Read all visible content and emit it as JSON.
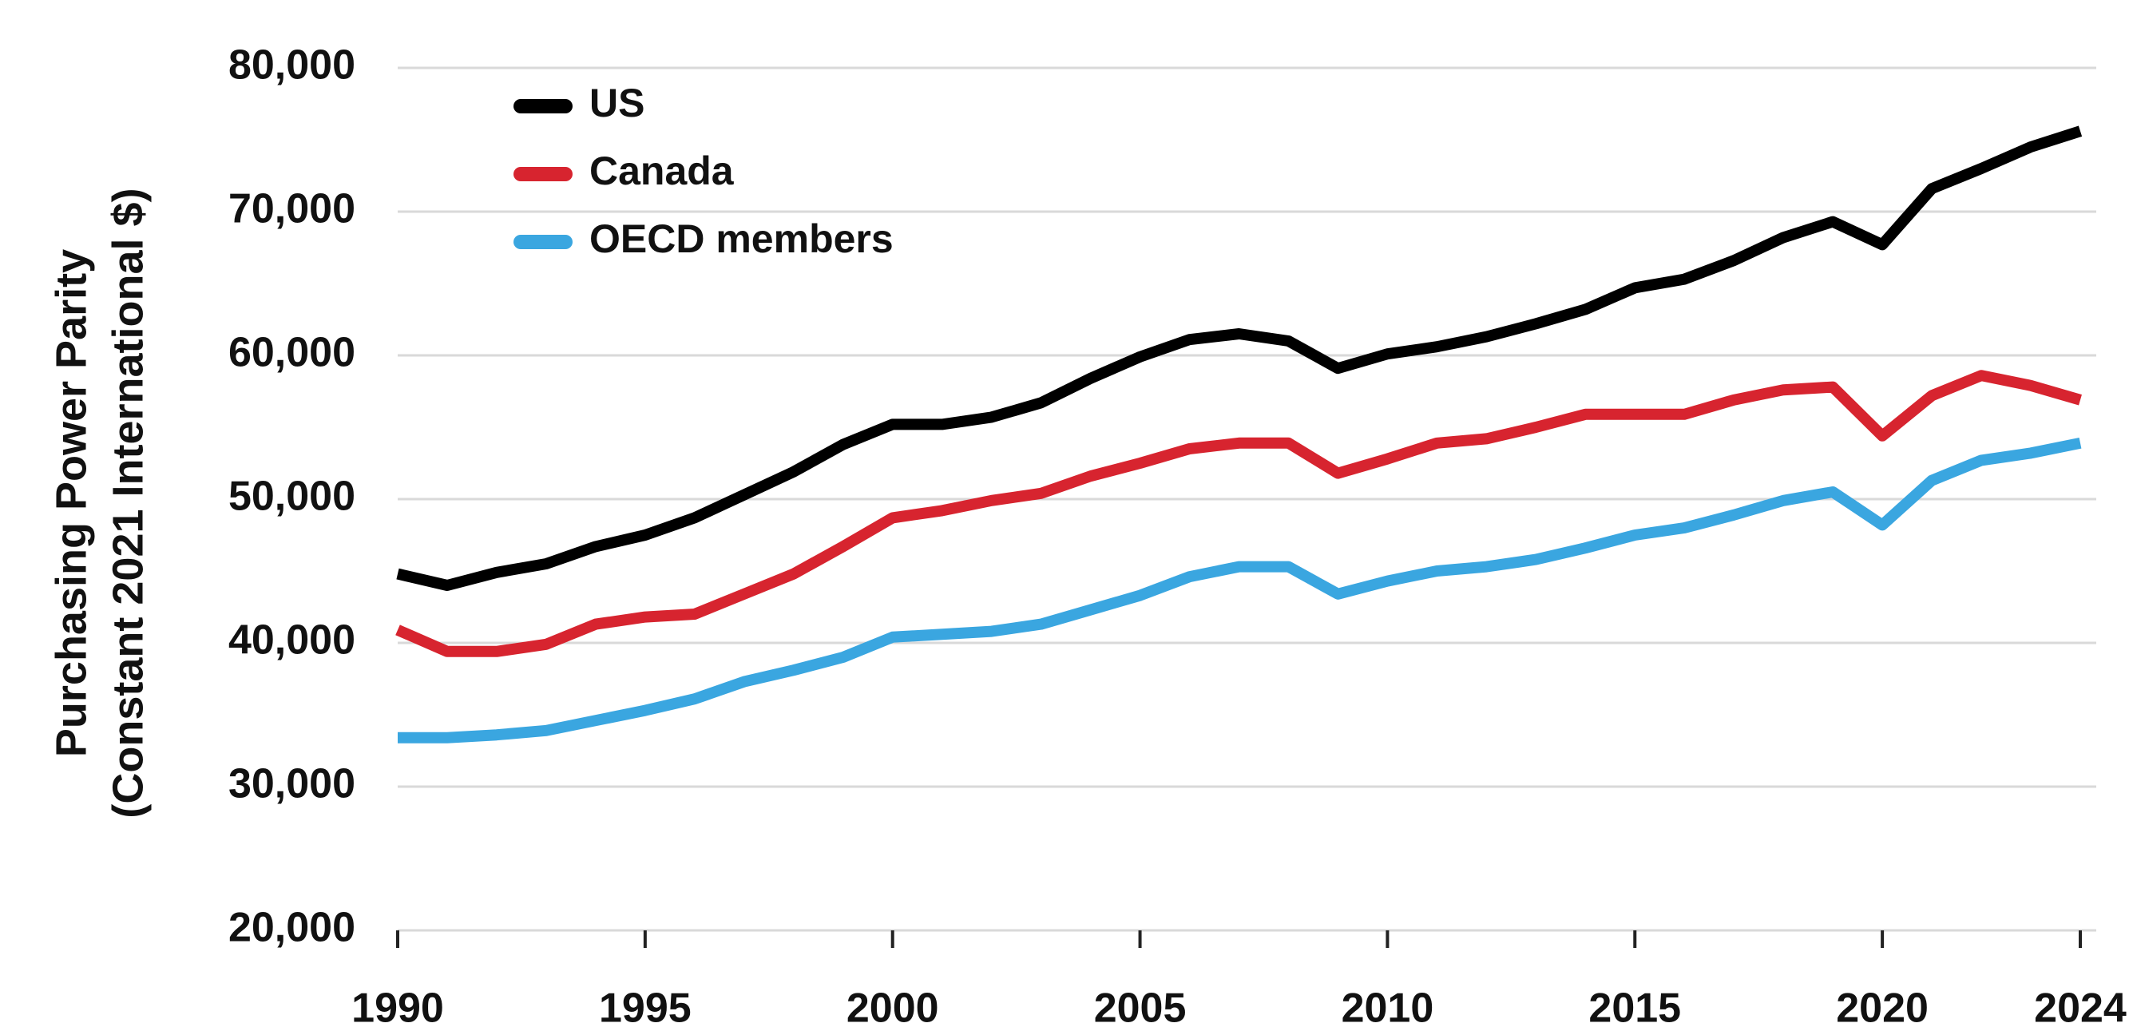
{
  "chart_data": {
    "type": "line",
    "ylabel": [
      "Purchasing Power Parity",
      "(Constant 2021 International $)"
    ],
    "x": [
      1990,
      1991,
      1992,
      1993,
      1994,
      1995,
      1996,
      1997,
      1998,
      1999,
      2000,
      2001,
      2002,
      2003,
      2004,
      2005,
      2006,
      2007,
      2008,
      2009,
      2010,
      2011,
      2012,
      2013,
      2014,
      2015,
      2016,
      2017,
      2018,
      2019,
      2020,
      2021,
      2022,
      2023,
      2024
    ],
    "series": [
      {
        "name": "US",
        "color": "#000000",
        "values": [
          44800,
          44000,
          44900,
          45500,
          46700,
          47500,
          48700,
          50300,
          51900,
          53800,
          55200,
          55200,
          55700,
          56700,
          58400,
          59900,
          61100,
          61500,
          61000,
          59100,
          60100,
          60600,
          61300,
          62200,
          63200,
          64700,
          65300,
          66600,
          68200,
          69300,
          67700,
          71600,
          73000,
          74500,
          75600
        ]
      },
      {
        "name": "Canada",
        "color": "#d7242f",
        "values": [
          40900,
          39400,
          39400,
          39900,
          41300,
          41800,
          42000,
          43400,
          44800,
          46700,
          48700,
          49200,
          49900,
          50400,
          51600,
          52500,
          53500,
          53900,
          53900,
          51800,
          52800,
          53900,
          54200,
          55000,
          55900,
          55900,
          55900,
          56900,
          57600,
          57800,
          54400,
          57200,
          58600,
          57900,
          56900
        ]
      },
      {
        "name": "OECD members",
        "color": "#3aa6e0",
        "values": [
          33400,
          33400,
          33600,
          33900,
          34600,
          35300,
          36100,
          37300,
          38100,
          39000,
          40400,
          40600,
          40800,
          41300,
          42300,
          43300,
          44600,
          45300,
          45300,
          43400,
          44300,
          45000,
          45300,
          45800,
          46600,
          47500,
          48000,
          48900,
          49900,
          50500,
          48200,
          51300,
          52700,
          53200,
          53900
        ]
      }
    ],
    "xlim": [
      1990,
      2024
    ],
    "xticks": [
      1990,
      1995,
      2000,
      2005,
      2010,
      2015,
      2020,
      2024
    ],
    "ylim": [
      20000,
      80000
    ],
    "yticks": [
      {
        "value": 20000,
        "label": "20,000"
      },
      {
        "value": 30000,
        "label": "30,000"
      },
      {
        "value": 40000,
        "label": "40,000"
      },
      {
        "value": 50000,
        "label": "50,000"
      },
      {
        "value": 60000,
        "label": "60,000"
      },
      {
        "value": 70000,
        "label": "70,000"
      },
      {
        "value": 80000,
        "label": "80,000"
      }
    ],
    "grid": true,
    "legend": "upper-left"
  }
}
